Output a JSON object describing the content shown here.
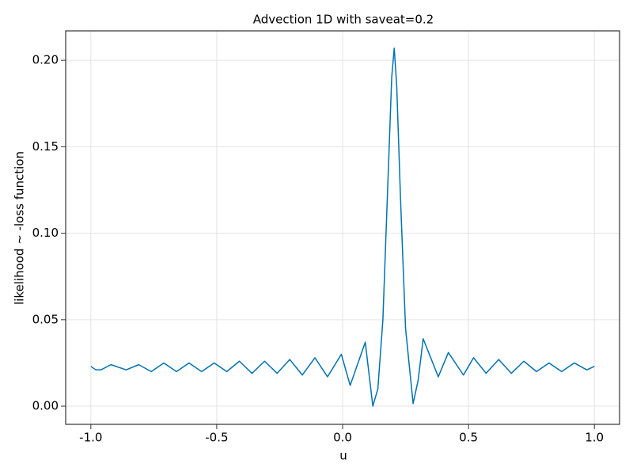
{
  "chart_data": {
    "type": "line",
    "title": "Advection 1D with saveat=0.2",
    "xlabel": "u",
    "ylabel": "likelihood ~ -loss function",
    "x": [
      -1.0,
      -0.98,
      -0.96,
      -0.92,
      -0.86,
      -0.81,
      -0.76,
      -0.71,
      -0.66,
      -0.61,
      -0.56,
      -0.51,
      -0.46,
      -0.41,
      -0.36,
      -0.31,
      -0.26,
      -0.21,
      -0.16,
      -0.11,
      -0.06,
      -0.005,
      0.03,
      0.09,
      0.12,
      0.14,
      0.16,
      0.18,
      0.195,
      0.205,
      0.215,
      0.23,
      0.25,
      0.28,
      0.3,
      0.32,
      0.38,
      0.42,
      0.48,
      0.52,
      0.57,
      0.62,
      0.67,
      0.72,
      0.77,
      0.82,
      0.87,
      0.92,
      0.97,
      1.0
    ],
    "series": [
      {
        "color": "#0072b2",
        "values": [
          0.023,
          0.021,
          0.021,
          0.024,
          0.021,
          0.024,
          0.02,
          0.025,
          0.02,
          0.025,
          0.02,
          0.025,
          0.02,
          0.026,
          0.019,
          0.026,
          0.019,
          0.027,
          0.018,
          0.028,
          0.017,
          0.03,
          0.012,
          0.037,
          0.0,
          0.01,
          0.05,
          0.13,
          0.19,
          0.207,
          0.185,
          0.12,
          0.045,
          0.0015,
          0.015,
          0.039,
          0.017,
          0.031,
          0.018,
          0.028,
          0.019,
          0.027,
          0.019,
          0.026,
          0.02,
          0.025,
          0.02,
          0.025,
          0.021,
          0.023
        ]
      }
    ],
    "xlim": [
      -1.1,
      1.1
    ],
    "ylim": [
      -0.0105,
      0.217
    ],
    "xticks": [
      {
        "value": -1.0,
        "label": "-1.0"
      },
      {
        "value": -0.5,
        "label": "-0.5"
      },
      {
        "value": 0,
        "label": "0.0"
      },
      {
        "value": 0.5,
        "label": "0.5"
      },
      {
        "value": 1.0,
        "label": "1.0"
      }
    ],
    "yticks": [
      {
        "value": 0,
        "label": "0.00"
      },
      {
        "value": 0.05,
        "label": "0.05"
      },
      {
        "value": 0.1,
        "label": "0.10"
      },
      {
        "value": 0.15,
        "label": "0.15"
      },
      {
        "value": 0.2,
        "label": "0.20"
      }
    ],
    "grid": true
  }
}
